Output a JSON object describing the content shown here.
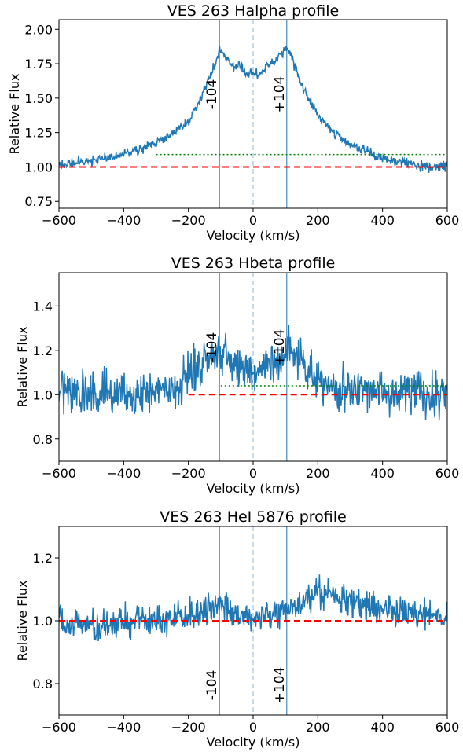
{
  "chart_data": [
    {
      "type": "line",
      "title": "VES 263 Halpha profile",
      "xlabel": "Velocity (km/s)",
      "ylabel": "Relative Flux",
      "xlim": [
        -600,
        600
      ],
      "ylim": [
        0.7,
        2.07
      ],
      "xticks": [
        "−600",
        "−400",
        "−200",
        "0",
        "200",
        "400",
        "600"
      ],
      "yticks": [
        "0.75",
        "1.00",
        "1.25",
        "1.50",
        "1.75",
        "2.00"
      ],
      "ytick_values": [
        0.75,
        1.0,
        1.25,
        1.5,
        1.75,
        2.0
      ],
      "series_anchors": {
        "x": [
          -600,
          -550,
          -500,
          -450,
          -400,
          -350,
          -300,
          -250,
          -200,
          -170,
          -140,
          -120,
          -104,
          -80,
          -60,
          -40,
          -20,
          0,
          20,
          40,
          60,
          80,
          104,
          120,
          140,
          170,
          200,
          250,
          300,
          350,
          400,
          450,
          500,
          550,
          600
        ],
        "y": [
          1.01,
          1.03,
          1.05,
          1.06,
          1.09,
          1.13,
          1.18,
          1.24,
          1.33,
          1.45,
          1.62,
          1.73,
          1.86,
          1.78,
          1.72,
          1.74,
          1.68,
          1.69,
          1.67,
          1.73,
          1.76,
          1.8,
          1.85,
          1.8,
          1.65,
          1.5,
          1.38,
          1.25,
          1.16,
          1.11,
          1.06,
          1.04,
          1.02,
          1.0,
          1.0
        ]
      },
      "noise_amplitude": 0.025,
      "continuum_level": 1.0,
      "threshold_level": 1.09,
      "threshold_range": [
        -300,
        600
      ],
      "peak_markers": [
        -104,
        104
      ],
      "peak_labels": [
        "-104",
        "+104"
      ],
      "peak_label_position": "upper",
      "center_line": 0,
      "colors": {
        "spectrum": "#1f77b4",
        "continuum": "#ff0000",
        "threshold": "#008000",
        "markers": "#1f77b4",
        "center": "#c6dbef"
      }
    },
    {
      "type": "line",
      "title": "VES 263 Hbeta profile",
      "xlabel": "Velocity (km/s)",
      "ylabel": "Relative Flux",
      "xlim": [
        -600,
        600
      ],
      "ylim": [
        0.7,
        1.55
      ],
      "xticks": [
        "−600",
        "−400",
        "−200",
        "0",
        "200",
        "400",
        "600"
      ],
      "yticks": [
        "0.8",
        "1.0",
        "1.2",
        "1.4"
      ],
      "ytick_values": [
        0.8,
        1.0,
        1.2,
        1.4
      ],
      "series_anchors": {
        "x": [
          -600,
          -400,
          -250,
          -200,
          -150,
          -104,
          -50,
          0,
          50,
          104,
          150,
          200,
          250,
          400,
          600
        ],
        "y": [
          1.01,
          1.01,
          1.03,
          1.08,
          1.16,
          1.2,
          1.13,
          1.08,
          1.14,
          1.2,
          1.15,
          1.06,
          1.02,
          1.01,
          1.0
        ]
      },
      "noise_amplitude": 0.07,
      "continuum_level": 1.0,
      "continuum_range": [
        -200,
        600
      ],
      "threshold_level": 1.04,
      "threshold_range": [
        -100,
        600
      ],
      "peak_markers": [
        -104,
        104
      ],
      "peak_labels": [
        "-104",
        "+104"
      ],
      "peak_label_position": "upper",
      "center_line": 0,
      "colors": {
        "spectrum": "#1f77b4",
        "continuum": "#ff0000",
        "threshold": "#008000",
        "markers": "#1f77b4",
        "center": "#c6dbef"
      }
    },
    {
      "type": "line",
      "title": "VES 263 HeI 5876 profile",
      "xlabel": "Velocity (km/s)",
      "ylabel": "Relative Flux",
      "xlim": [
        -600,
        600
      ],
      "ylim": [
        0.7,
        1.3
      ],
      "xticks": [
        "−600",
        "−400",
        "−200",
        "0",
        "200",
        "400",
        "600"
      ],
      "yticks": [
        "0.8",
        "1.0",
        "1.2"
      ],
      "ytick_values": [
        0.8,
        1.0,
        1.2
      ],
      "series_anchors": {
        "x": [
          -600,
          -450,
          -300,
          -200,
          -150,
          -100,
          -50,
          0,
          50,
          100,
          150,
          200,
          250,
          300,
          400,
          500,
          600
        ],
        "y": [
          0.99,
          0.99,
          1.0,
          1.02,
          1.04,
          1.03,
          1.02,
          1.0,
          1.02,
          1.04,
          1.06,
          1.09,
          1.08,
          1.06,
          1.04,
          1.02,
          1.01
        ]
      },
      "noise_amplitude": 0.035,
      "continuum_level": 1.0,
      "peak_markers": [
        -104,
        104
      ],
      "peak_labels": [
        "-104",
        "+104"
      ],
      "peak_label_position": "lower",
      "center_line": 0,
      "colors": {
        "spectrum": "#1f77b4",
        "continuum": "#ff0000",
        "markers": "#1f77b4",
        "center": "#c6dbef"
      }
    }
  ]
}
